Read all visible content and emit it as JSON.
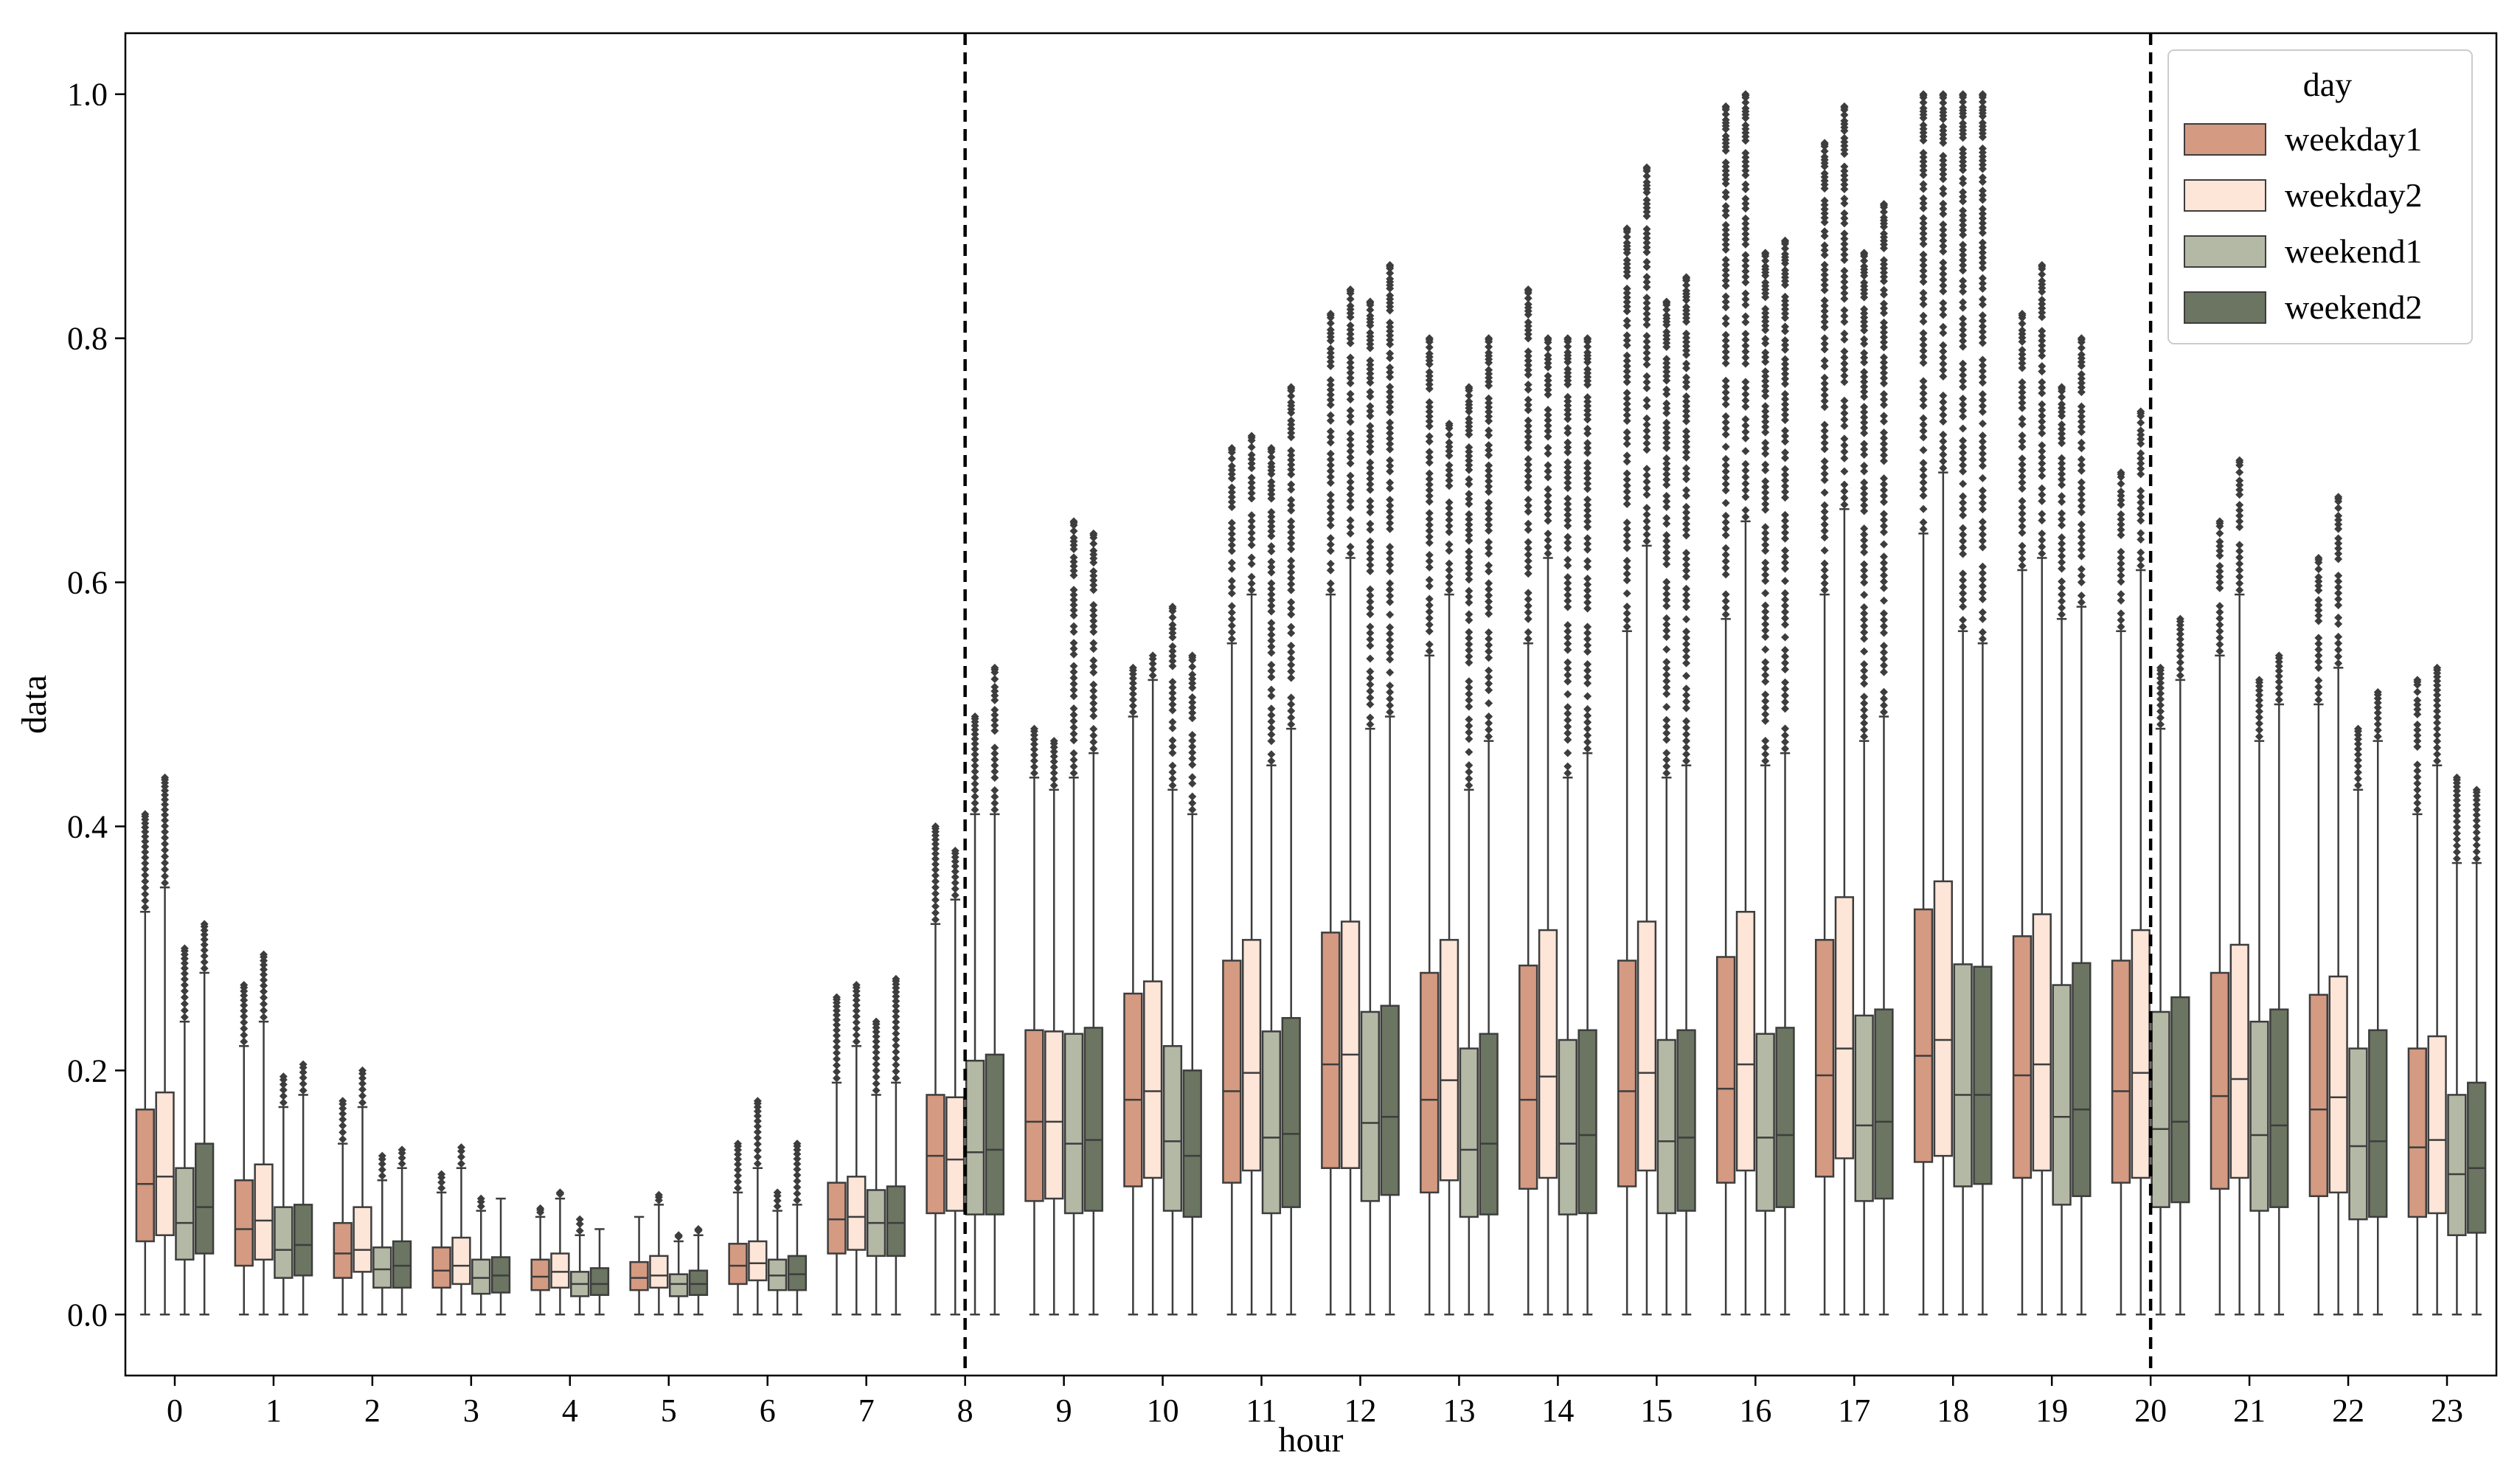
{
  "chart_data": {
    "type": "boxplot",
    "title": "",
    "xlabel": "hour",
    "ylabel": "data",
    "ylim": [
      -0.05,
      1.05
    ],
    "yticks": [
      "0.0",
      "0.2",
      "0.4",
      "0.6",
      "0.8",
      "1.0"
    ],
    "categories": [
      "0",
      "1",
      "2",
      "3",
      "4",
      "5",
      "6",
      "7",
      "8",
      "9",
      "10",
      "11",
      "12",
      "13",
      "14",
      "15",
      "16",
      "17",
      "18",
      "19",
      "20",
      "21",
      "22",
      "23"
    ],
    "vlines_at_hour": [
      8,
      20
    ],
    "legend": {
      "title": "day",
      "position": "top-right"
    },
    "series": [
      {
        "name": "weekday1",
        "color": "#d49a82",
        "q1": [
          0.06,
          0.04,
          0.03,
          0.022,
          0.02,
          0.02,
          0.025,
          0.05,
          0.083,
          0.093,
          0.105,
          0.108,
          0.12,
          0.1,
          0.103,
          0.105,
          0.108,
          0.113,
          0.125,
          0.112,
          0.108,
          0.103,
          0.097,
          0.08
        ],
        "median": [
          0.107,
          0.07,
          0.05,
          0.036,
          0.031,
          0.03,
          0.04,
          0.078,
          0.13,
          0.158,
          0.176,
          0.183,
          0.205,
          0.176,
          0.176,
          0.183,
          0.185,
          0.196,
          0.212,
          0.196,
          0.183,
          0.179,
          0.168,
          0.137
        ],
        "q3": [
          0.168,
          0.11,
          0.075,
          0.055,
          0.045,
          0.043,
          0.058,
          0.108,
          0.18,
          0.233,
          0.263,
          0.29,
          0.313,
          0.28,
          0.286,
          0.29,
          0.293,
          0.307,
          0.332,
          0.31,
          0.29,
          0.28,
          0.262,
          0.218
        ],
        "wlo": [
          0,
          0,
          0,
          0,
          0,
          0,
          0,
          0,
          0,
          0,
          0,
          0,
          0,
          0,
          0,
          0,
          0,
          0,
          0,
          0,
          0,
          0,
          0,
          0
        ],
        "whi": [
          0.33,
          0.22,
          0.14,
          0.1,
          0.08,
          0.08,
          0.1,
          0.19,
          0.32,
          0.44,
          0.49,
          0.55,
          0.59,
          0.54,
          0.55,
          0.56,
          0.57,
          0.59,
          0.64,
          0.61,
          0.56,
          0.54,
          0.5,
          0.41
        ],
        "flier_max": [
          0.41,
          0.27,
          0.175,
          0.115,
          0.087,
          0.079,
          0.14,
          0.26,
          0.4,
          0.48,
          0.53,
          0.71,
          0.82,
          0.8,
          0.84,
          0.89,
          0.99,
          0.96,
          1.0,
          0.82,
          0.69,
          0.65,
          0.62,
          0.52
        ]
      },
      {
        "name": "weekday2",
        "color": "#fde5d8",
        "q1": [
          0.065,
          0.045,
          0.035,
          0.025,
          0.022,
          0.022,
          0.028,
          0.053,
          0.085,
          0.095,
          0.112,
          0.118,
          0.12,
          0.11,
          0.112,
          0.118,
          0.118,
          0.128,
          0.13,
          0.118,
          0.112,
          0.112,
          0.1,
          0.083
        ],
        "median": [
          0.113,
          0.077,
          0.053,
          0.04,
          0.035,
          0.032,
          0.042,
          0.08,
          0.127,
          0.158,
          0.183,
          0.198,
          0.213,
          0.192,
          0.195,
          0.198,
          0.205,
          0.218,
          0.225,
          0.205,
          0.198,
          0.193,
          0.178,
          0.143
        ],
        "q3": [
          0.182,
          0.123,
          0.088,
          0.063,
          0.05,
          0.048,
          0.06,
          0.113,
          0.178,
          0.232,
          0.273,
          0.307,
          0.322,
          0.307,
          0.315,
          0.322,
          0.33,
          0.342,
          0.355,
          0.328,
          0.315,
          0.303,
          0.277,
          0.228
        ],
        "wlo": [
          0,
          0,
          0,
          0,
          0,
          0,
          0,
          0,
          0,
          0,
          0,
          0,
          0,
          0,
          0,
          0,
          0,
          0,
          0,
          0,
          0,
          0,
          0,
          0
        ],
        "whi": [
          0.35,
          0.24,
          0.17,
          0.12,
          0.095,
          0.09,
          0.12,
          0.22,
          0.34,
          0.43,
          0.52,
          0.59,
          0.62,
          0.59,
          0.62,
          0.63,
          0.65,
          0.66,
          0.69,
          0.62,
          0.61,
          0.59,
          0.53,
          0.45
        ],
        "flier_max": [
          0.44,
          0.295,
          0.2,
          0.137,
          0.1,
          0.098,
          0.175,
          0.27,
          0.38,
          0.47,
          0.54,
          0.72,
          0.84,
          0.73,
          0.8,
          0.94,
          1.0,
          0.99,
          1.0,
          0.86,
          0.74,
          0.7,
          0.67,
          0.53
        ]
      },
      {
        "name": "weekend1",
        "color": "#b4b9a5",
        "q1": [
          0.045,
          0.03,
          0.022,
          0.017,
          0.015,
          0.015,
          0.02,
          0.048,
          0.082,
          0.083,
          0.085,
          0.083,
          0.093,
          0.08,
          0.082,
          0.083,
          0.085,
          0.093,
          0.105,
          0.09,
          0.088,
          0.085,
          0.078,
          0.065
        ],
        "median": [
          0.075,
          0.053,
          0.037,
          0.03,
          0.025,
          0.025,
          0.032,
          0.075,
          0.133,
          0.14,
          0.142,
          0.145,
          0.157,
          0.135,
          0.14,
          0.142,
          0.145,
          0.155,
          0.18,
          0.162,
          0.152,
          0.147,
          0.138,
          0.115
        ],
        "q3": [
          0.12,
          0.088,
          0.055,
          0.045,
          0.035,
          0.033,
          0.045,
          0.102,
          0.208,
          0.23,
          0.22,
          0.232,
          0.248,
          0.218,
          0.225,
          0.225,
          0.23,
          0.245,
          0.287,
          0.27,
          0.248,
          0.24,
          0.218,
          0.18
        ],
        "wlo": [
          0,
          0,
          0,
          0,
          0,
          0,
          0,
          0,
          0,
          0,
          0,
          0,
          0,
          0,
          0,
          0,
          0,
          0,
          0,
          0,
          0,
          0,
          0,
          0
        ],
        "whi": [
          0.24,
          0.17,
          0.11,
          0.085,
          0.065,
          0.06,
          0.085,
          0.18,
          0.41,
          0.44,
          0.43,
          0.45,
          0.48,
          0.43,
          0.44,
          0.44,
          0.45,
          0.47,
          0.56,
          0.57,
          0.48,
          0.47,
          0.43,
          0.37
        ],
        "flier_max": [
          0.3,
          0.195,
          0.13,
          0.095,
          0.078,
          0.065,
          0.1,
          0.24,
          0.49,
          0.65,
          0.58,
          0.71,
          0.83,
          0.76,
          0.8,
          0.83,
          0.87,
          0.87,
          1.0,
          0.76,
          0.53,
          0.52,
          0.48,
          0.44
        ]
      },
      {
        "name": "weekend2",
        "color": "#6b7561",
        "q1": [
          0.05,
          0.032,
          0.022,
          0.018,
          0.016,
          0.016,
          0.02,
          0.048,
          0.082,
          0.085,
          0.08,
          0.088,
          0.098,
          0.082,
          0.083,
          0.085,
          0.088,
          0.095,
          0.107,
          0.097,
          0.092,
          0.088,
          0.08,
          0.067
        ],
        "median": [
          0.088,
          0.057,
          0.04,
          0.032,
          0.025,
          0.025,
          0.033,
          0.075,
          0.135,
          0.143,
          0.13,
          0.148,
          0.162,
          0.14,
          0.147,
          0.145,
          0.147,
          0.158,
          0.18,
          0.168,
          0.158,
          0.155,
          0.142,
          0.12
        ],
        "q3": [
          0.14,
          0.09,
          0.06,
          0.047,
          0.038,
          0.036,
          0.048,
          0.105,
          0.213,
          0.235,
          0.2,
          0.243,
          0.253,
          0.23,
          0.233,
          0.233,
          0.235,
          0.25,
          0.285,
          0.288,
          0.26,
          0.25,
          0.233,
          0.19
        ],
        "wlo": [
          0,
          0,
          0,
          0,
          0,
          0,
          0,
          0,
          0,
          0,
          0,
          0,
          0,
          0,
          0,
          0,
          0,
          0,
          0,
          0,
          0,
          0,
          0,
          0
        ],
        "whi": [
          0.28,
          0.18,
          0.12,
          0.095,
          0.07,
          0.065,
          0.09,
          0.19,
          0.41,
          0.46,
          0.41,
          0.48,
          0.49,
          0.47,
          0.46,
          0.45,
          0.46,
          0.49,
          0.55,
          0.58,
          0.52,
          0.5,
          0.47,
          0.37
        ],
        "flier_max": [
          0.32,
          0.205,
          0.135,
          0.098,
          0.072,
          0.07,
          0.14,
          0.275,
          0.53,
          0.64,
          0.54,
          0.76,
          0.86,
          0.8,
          0.8,
          0.85,
          0.88,
          0.91,
          1.0,
          0.8,
          0.57,
          0.54,
          0.51,
          0.43
        ]
      }
    ]
  }
}
